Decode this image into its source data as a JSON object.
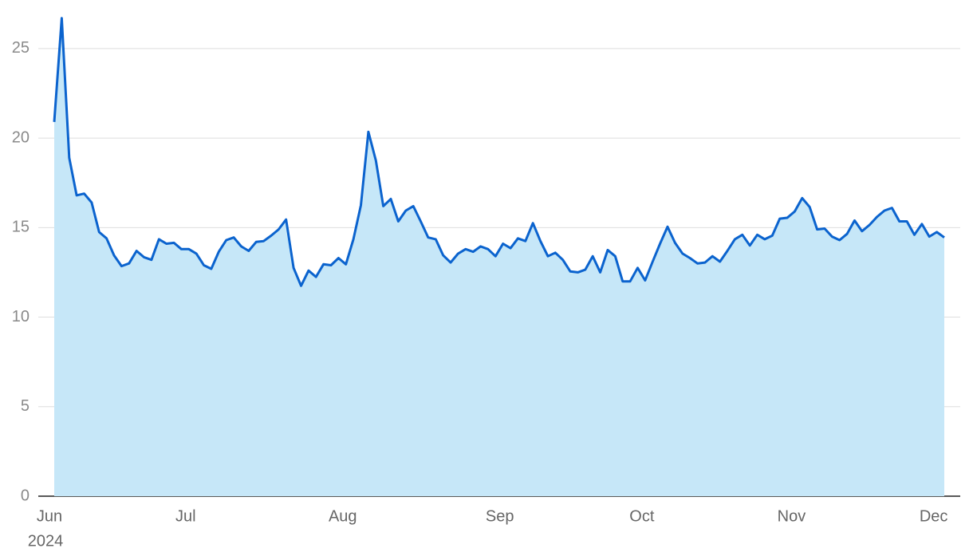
{
  "chart_data": {
    "type": "area",
    "categories": [
      "Jun",
      null,
      null,
      null,
      null,
      null,
      null,
      null,
      null,
      null,
      null,
      null,
      null,
      null,
      null,
      null,
      null,
      null,
      "Jul",
      null,
      null,
      null,
      null,
      null,
      null,
      null,
      null,
      null,
      null,
      null,
      null,
      null,
      null,
      null,
      null,
      null,
      null,
      null,
      null,
      "Aug",
      null,
      null,
      null,
      null,
      null,
      null,
      null,
      null,
      null,
      null,
      null,
      null,
      null,
      null,
      null,
      null,
      null,
      null,
      null,
      null,
      "Sep",
      null,
      null,
      null,
      null,
      null,
      null,
      null,
      null,
      null,
      null,
      null,
      null,
      null,
      null,
      null,
      null,
      null,
      null,
      "Oct",
      null,
      null,
      null,
      null,
      null,
      null,
      null,
      null,
      null,
      null,
      null,
      null,
      null,
      null,
      null,
      null,
      null,
      null,
      null,
      "Nov",
      null,
      null,
      null,
      null,
      null,
      null,
      null,
      null,
      null,
      null,
      null,
      null,
      null,
      null,
      null,
      null,
      null,
      null,
      "Dec",
      null
    ],
    "year_label": "2024",
    "values": [
      20.9,
      26.7,
      18.9,
      16.8,
      16.9,
      16.4,
      14.75,
      14.4,
      13.45,
      12.85,
      13.0,
      13.7,
      13.35,
      13.2,
      14.35,
      14.1,
      14.15,
      13.8,
      13.8,
      13.55,
      12.9,
      12.7,
      13.65,
      14.3,
      14.45,
      13.95,
      13.7,
      14.2,
      14.25,
      14.55,
      14.9,
      15.45,
      12.75,
      11.75,
      12.6,
      12.25,
      12.95,
      12.9,
      13.3,
      12.95,
      14.35,
      16.25,
      20.35,
      18.75,
      16.2,
      16.6,
      15.35,
      15.95,
      16.2,
      15.35,
      14.45,
      14.35,
      13.45,
      13.05,
      13.55,
      13.8,
      13.65,
      13.95,
      13.8,
      13.4,
      14.1,
      13.85,
      14.4,
      14.25,
      15.25,
      14.25,
      13.4,
      13.6,
      13.2,
      12.55,
      12.5,
      12.65,
      13.4,
      12.5,
      13.75,
      13.4,
      12.0,
      12.0,
      12.75,
      12.05,
      13.1,
      14.1,
      15.05,
      14.15,
      13.55,
      13.3,
      13.0,
      13.05,
      13.4,
      13.1,
      13.7,
      14.35,
      14.6,
      14.0,
      14.6,
      14.35,
      14.55,
      15.5,
      15.55,
      15.9,
      16.65,
      16.15,
      14.9,
      14.95,
      14.5,
      14.3,
      14.65,
      15.4,
      14.8,
      15.15,
      15.6,
      15.95,
      16.1,
      15.35,
      15.35,
      14.6,
      15.2,
      14.5,
      14.75,
      14.45
    ],
    "line_color": "#0b63ce",
    "fill_color": "#c6e7f8",
    "ylim": [
      0,
      27
    ],
    "yticks": [
      0,
      5,
      10,
      15,
      20,
      25
    ],
    "grid": true
  }
}
